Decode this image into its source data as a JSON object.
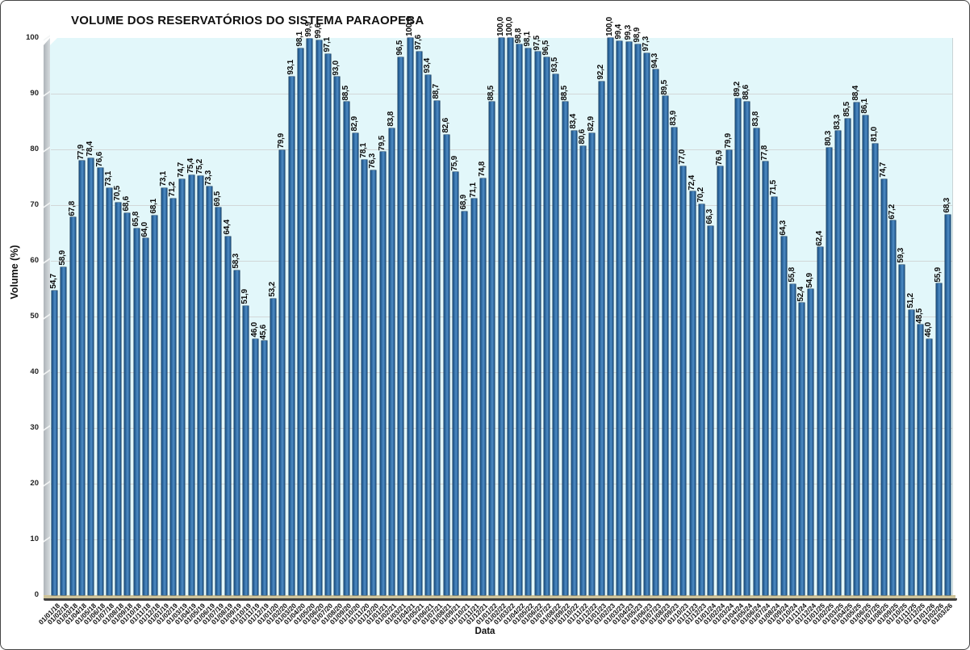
{
  "chart": {
    "title": "VOLUME DOS RESERVATÓRIOS DO SISTEMA PARAOPEBA",
    "x_axis_title": "Data",
    "y_axis_title": "Volume (%)"
  },
  "chart_data": {
    "type": "bar",
    "title": "VOLUME DOS RESERVATÓRIOS DO SISTEMA PARAOPEBA",
    "xlabel": "Data",
    "ylabel": "Volume (%)",
    "ylim": [
      0,
      100
    ],
    "yticks": [
      0,
      10,
      20,
      30,
      40,
      50,
      60,
      70,
      80,
      90,
      100
    ],
    "grid": true,
    "legend": "none",
    "bar_color": "#2E6DA4",
    "plot_bg": "#E2F7FA",
    "value_label_format": "comma-decimal-1",
    "categories": [
      "01/01/18",
      "01/02/18",
      "01/03/18",
      "01/04/18",
      "01/05/18",
      "01/06/18",
      "01/07/18",
      "01/08/18",
      "01/09/18",
      "01/10/18",
      "01/11/18",
      "01/12/18",
      "01/01/19",
      "01/02/19",
      "01/03/19",
      "01/04/19",
      "01/05/19",
      "01/06/19",
      "01/07/19",
      "01/08/19",
      "01/09/19",
      "01/10/19",
      "01/11/19",
      "01/12/19",
      "01/01/20",
      "01/02/20",
      "01/03/20",
      "01/04/20",
      "01/05/20",
      "01/06/20",
      "01/07/20",
      "01/08/20",
      "01/09/20",
      "01/10/20",
      "01/11/20",
      "01/12/20",
      "01/01/21",
      "01/02/21",
      "01/03/21",
      "01/04/21",
      "01/05/21",
      "01/06/21",
      "01/07/21",
      "01/08/21",
      "01/09/21",
      "01/10/21",
      "01/11/21",
      "01/12/21",
      "01/01/22",
      "01/02/22",
      "01/03/22",
      "01/04/22",
      "01/05/22",
      "01/06/22",
      "01/07/22",
      "01/08/22",
      "01/09/22",
      "01/10/22",
      "01/11/22",
      "01/12/22",
      "01/01/23",
      "01/02/23",
      "01/03/23",
      "01/04/23",
      "01/05/23",
      "01/06/23",
      "01/07/23",
      "01/08/23",
      "01/09/23",
      "01/10/23",
      "01/11/23",
      "01/12/23",
      "01/01/24",
      "01/02/24",
      "01/03/24",
      "01/04/24",
      "01/05/24",
      "01/06/24",
      "01/07/24",
      "01/08/24",
      "01/09/24",
      "01/10/24",
      "01/11/24",
      "01/12/24",
      "01/01/25",
      "01/02/25",
      "01/03/25",
      "01/04/25",
      "01/05/25",
      "01/06/25",
      "01/07/25",
      "01/08/25",
      "01/09/25",
      "01/10/25",
      "01/11/25",
      "01/12/25",
      "01/01/26",
      "01/02/26",
      "01/03/26"
    ],
    "values": [
      54.7,
      58.9,
      67.8,
      77.9,
      78.4,
      76.6,
      73.1,
      70.5,
      68.6,
      65.8,
      64.0,
      68.1,
      73.1,
      71.2,
      74.7,
      75.4,
      75.2,
      73.3,
      69.5,
      64.4,
      58.3,
      51.9,
      46.0,
      45.6,
      53.2,
      79.9,
      93.1,
      98.1,
      99.9,
      99.6,
      97.1,
      93.0,
      88.5,
      82.9,
      78.1,
      76.3,
      79.5,
      83.8,
      96.5,
      100.0,
      97.6,
      93.4,
      88.7,
      82.6,
      75.9,
      68.9,
      71.1,
      74.8,
      88.5,
      100.0,
      100.0,
      98.8,
      98.1,
      97.5,
      96.5,
      93.5,
      88.5,
      83.4,
      80.6,
      82.9,
      92.2,
      100.0,
      99.4,
      99.3,
      98.9,
      97.3,
      94.3,
      89.5,
      83.9,
      77.0,
      72.4,
      70.2,
      66.3,
      76.9,
      79.9,
      89.2,
      88.6,
      83.8,
      77.8,
      71.5,
      64.3,
      55.8,
      52.4,
      54.9,
      62.4,
      80.3,
      83.3,
      85.5,
      88.4,
      86.1,
      81.0,
      74.7,
      67.2,
      59.3,
      51.2,
      48.5,
      46.0,
      55.9,
      68.3
    ]
  }
}
